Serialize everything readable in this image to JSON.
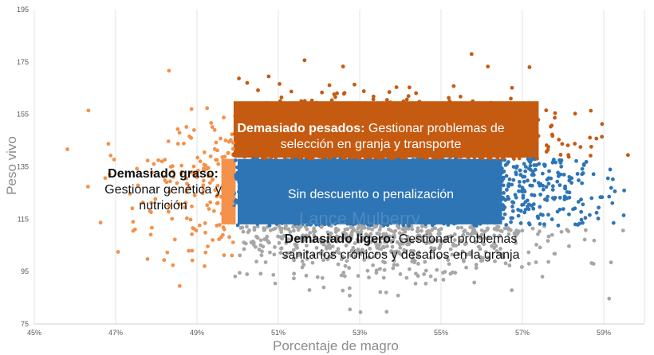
{
  "chart_data": {
    "type": "scatter",
    "title": "",
    "xlabel": "Porcentaje de magro",
    "ylabel": "Peso vivo",
    "xlim": [
      45,
      60
    ],
    "ylim": [
      75,
      195
    ],
    "x_ticks": [
      "45%",
      "47%",
      "49%",
      "51%",
      "53%",
      "55%",
      "57%",
      "59%"
    ],
    "x_tick_values": [
      45,
      47,
      49,
      51,
      53,
      55,
      57,
      59
    ],
    "y_ticks": [
      "75",
      "95",
      "115",
      "135",
      "155",
      "175",
      "195"
    ],
    "y_tick_values": [
      75,
      95,
      115,
      135,
      155,
      175,
      195
    ],
    "grid": "vertical",
    "distribution": {
      "x_mean": 53.5,
      "x_sd": 2.2,
      "y_mean": 127,
      "y_sd": 14,
      "n_points": 4000,
      "seed": 7
    },
    "series": [
      {
        "name": "Demasiado pesados",
        "color": "#C55A11",
        "rule": "x >= 49.9 and y > 138"
      },
      {
        "name": "Sin descuento o penalización",
        "color": "#2E75B6",
        "rule": "x >= 49.9 and 112.5 <= y <= 138"
      },
      {
        "name": "Demasiado ligero",
        "color": "#A6A6A6",
        "rule": "x >= 49.9 and y < 112.5"
      },
      {
        "name": "Demasiado graso",
        "color": "#F4914B",
        "rule": "x < 49.9"
      }
    ],
    "annotations": {
      "heavy": {
        "bold": "Demasiado pesados:",
        "text": " Gestionar problemas de selección en granja y transporte"
      },
      "ok": {
        "text": "Sin descuento o penalización"
      },
      "light": {
        "bold": "Demasiado ligero:",
        "text": " Gestionar problemas sanitarios crónicos y desafíos en la granja"
      },
      "fat": {
        "bold": "Demasiado graso:",
        "text": " Gestionar genética y nutrición"
      }
    },
    "watermark": "Lance Mulberry"
  }
}
